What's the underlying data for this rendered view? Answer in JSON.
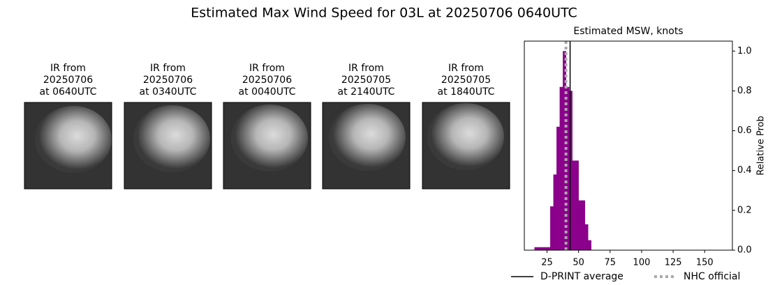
{
  "title": "Estimated Max Wind Speed for 03L at 20250706 0640UTC",
  "panels": [
    {
      "lines": [
        "IR from",
        "20250706",
        "at 0640UTC"
      ]
    },
    {
      "lines": [
        "IR from",
        "20250706",
        "at 0340UTC"
      ]
    },
    {
      "lines": [
        "IR from",
        "20250706",
        "at 0040UTC"
      ]
    },
    {
      "lines": [
        "IR from",
        "20250705",
        "at 2140UTC"
      ]
    },
    {
      "lines": [
        "IR from",
        "20250705",
        "at 1840UTC"
      ]
    }
  ],
  "chart_data": {
    "type": "histogram",
    "title": "Estimated MSW, knots",
    "y_label": "Relative Prob",
    "color": "#8b008b",
    "bins": [
      15,
      17.5,
      20,
      22.5,
      25,
      27.5,
      30,
      32.5,
      35,
      37.5,
      40,
      42.5,
      45,
      47.5,
      50,
      52.5,
      55,
      57.5,
      60
    ],
    "values": [
      0.015,
      0.015,
      0.015,
      0.015,
      0.015,
      0.22,
      0.38,
      0.62,
      0.82,
      1.0,
      0.82,
      0.8,
      0.45,
      0.45,
      0.25,
      0.25,
      0.13,
      0.05
    ],
    "lines": [
      {
        "name": "D-PRINT average",
        "value": 43.3,
        "color": "#000000",
        "style": "solid"
      },
      {
        "name": "NHC official",
        "value": 40,
        "color": "#aaaaaa",
        "style": "dotted"
      }
    ],
    "xlim": [
      7,
      172
    ],
    "ylim": [
      0,
      1.05
    ],
    "xticks": [
      25,
      50,
      75,
      100,
      125,
      150
    ],
    "yticks": [
      {
        "value": 0,
        "label": "0.0"
      },
      0.2,
      0.4,
      0.6,
      0.8,
      {
        "value": 1,
        "label": "1.0"
      }
    ]
  }
}
